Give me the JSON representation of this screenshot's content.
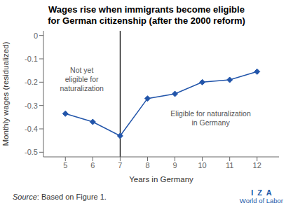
{
  "chart_data": {
    "type": "line",
    "title": "Wages rise when immigrants become eligible\nfor German citizenship (after the 2000 reform)",
    "xlabel": "Years in Germany",
    "ylabel": "Monthly wages (residualized)",
    "x": [
      5,
      6,
      7,
      8,
      9,
      10,
      11,
      12
    ],
    "values": [
      -0.335,
      -0.37,
      -0.43,
      -0.27,
      -0.25,
      -0.2,
      -0.19,
      -0.155
    ],
    "color": "#2255aa",
    "marker": "diamond",
    "xlim": [
      4.2,
      12.8
    ],
    "ylim": [
      -0.52,
      0.02
    ],
    "xticks": [
      5,
      6,
      7,
      8,
      9,
      10,
      11,
      12
    ],
    "yticks": [
      0,
      -0.1,
      -0.2,
      -0.3,
      -0.4,
      -0.5
    ],
    "grid": false,
    "vline": 7,
    "annotations": [
      "Not yet\neligible for\nnaturalization",
      "Eligible for naturalization\nin Germany"
    ],
    "source": [
      "Source",
      ": Based on Figure 1."
    ],
    "logo": [
      "I  Z  A",
      "World of Labor"
    ]
  }
}
